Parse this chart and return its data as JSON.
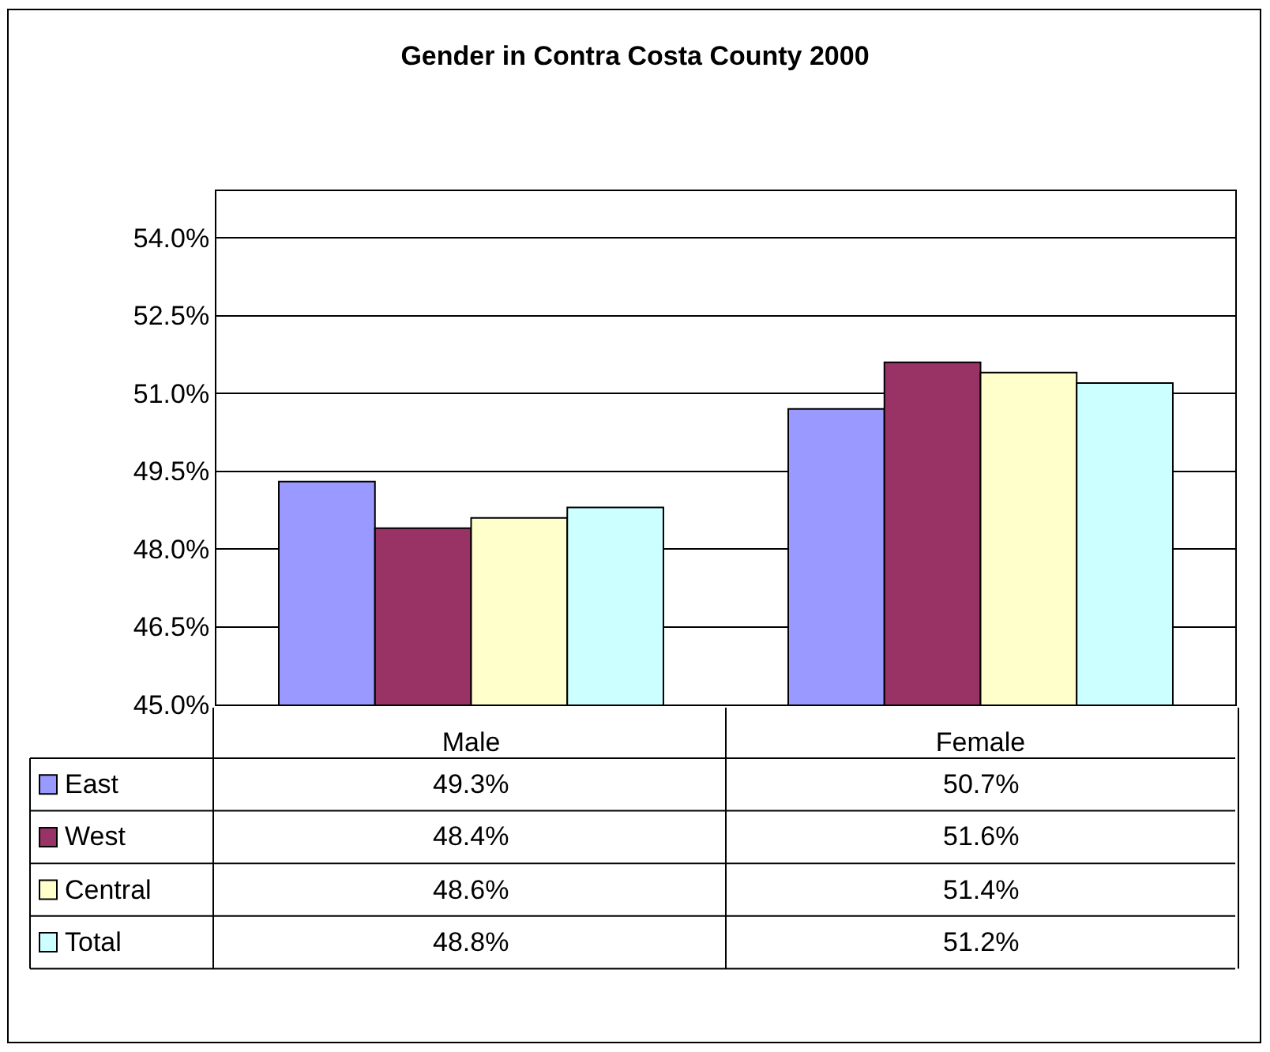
{
  "chart_data": {
    "type": "bar",
    "title": "Gender in Contra Costa County 2000",
    "categories": [
      "Male",
      "Female"
    ],
    "series": [
      {
        "name": "East",
        "color": "#9999ff",
        "values": [
          49.3,
          50.7
        ],
        "value_labels": [
          "49.3%",
          "50.7%"
        ]
      },
      {
        "name": "West",
        "color": "#993366",
        "values": [
          48.4,
          51.6
        ],
        "value_labels": [
          "48.4%",
          "51.6%"
        ]
      },
      {
        "name": "Central",
        "color": "#ffffcc",
        "values": [
          48.6,
          51.4
        ],
        "value_labels": [
          "48.6%",
          "51.4%"
        ]
      },
      {
        "name": "Total",
        "color": "#ccffff",
        "values": [
          48.8,
          51.2
        ],
        "value_labels": [
          "48.8%",
          "51.2%"
        ]
      }
    ],
    "ylim": [
      45,
      54.9
    ],
    "yticks": [
      {
        "value": 45,
        "label": "45.0%"
      },
      {
        "value": 46.5,
        "label": "46.5%"
      },
      {
        "value": 48,
        "label": "48.0%"
      },
      {
        "value": 49.5,
        "label": "49.5%"
      },
      {
        "value": 51,
        "label": "51.0%"
      },
      {
        "value": 52.5,
        "label": "52.5%"
      },
      {
        "value": 54,
        "label": "54.0%"
      }
    ],
    "grid": "y",
    "legend": "bottom"
  }
}
